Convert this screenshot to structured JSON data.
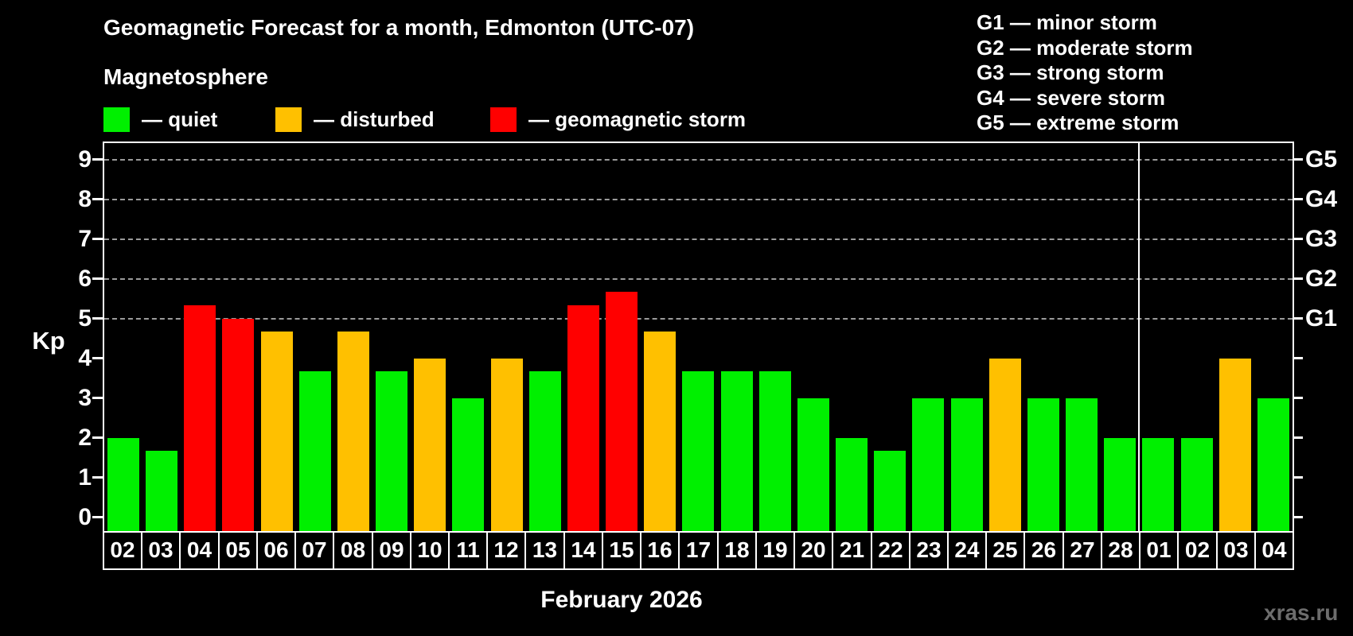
{
  "title": "Geomagnetic Forecast for a month, Edmonton (UTC-07)",
  "subtitle": "Magnetosphere",
  "legend": {
    "items": [
      {
        "key": "quiet",
        "label": "— quiet",
        "color": "#00f000"
      },
      {
        "key": "disturbed",
        "label": "— disturbed",
        "color": "#ffc000"
      },
      {
        "key": "storm",
        "label": "— geomagnetic storm",
        "color": "#ff0000"
      }
    ]
  },
  "storm_scale": [
    "G1 — minor storm",
    "G2 — moderate storm",
    "G3 — strong storm",
    "G4 — severe storm",
    "G5 — extreme storm"
  ],
  "month_label": "February 2026",
  "watermark": "xras.ru",
  "chart_data": {
    "type": "bar",
    "title": "Geomagnetic Forecast for a month, Edmonton (UTC-07)",
    "subtitle": "Magnetosphere",
    "xlabel": "February 2026",
    "ylabel": "Kp",
    "ylim": [
      0,
      9
    ],
    "yticks": [
      0,
      1,
      2,
      3,
      4,
      5,
      6,
      7,
      8,
      9
    ],
    "grid": "dashed horizontal lines at Kp 5-9 only",
    "gridlines": [
      5,
      6,
      7,
      8,
      9
    ],
    "right_axis_labels": [
      {
        "label": "G1",
        "kp": 5
      },
      {
        "label": "G2",
        "kp": 6
      },
      {
        "label": "G3",
        "kp": 7
      },
      {
        "label": "G4",
        "kp": 8
      },
      {
        "label": "G5",
        "kp": 9
      }
    ],
    "categories": [
      "02",
      "03",
      "04",
      "05",
      "06",
      "07",
      "08",
      "09",
      "10",
      "11",
      "12",
      "13",
      "14",
      "15",
      "16",
      "17",
      "18",
      "19",
      "20",
      "21",
      "22",
      "23",
      "24",
      "25",
      "26",
      "27",
      "28",
      "01",
      "02",
      "03",
      "04"
    ],
    "values": [
      2.0,
      1.67,
      5.33,
      5.0,
      4.67,
      3.67,
      4.67,
      3.67,
      4.0,
      3.0,
      4.0,
      3.67,
      5.33,
      5.67,
      4.67,
      3.67,
      3.67,
      3.67,
      3.0,
      2.0,
      1.67,
      3.0,
      3.0,
      4.0,
      3.0,
      3.0,
      2.0,
      2.0,
      2.0,
      4.0,
      3.0
    ],
    "statuses": [
      "quiet",
      "quiet",
      "storm",
      "storm",
      "disturbed",
      "quiet",
      "disturbed",
      "quiet",
      "disturbed",
      "quiet",
      "disturbed",
      "quiet",
      "storm",
      "storm",
      "disturbed",
      "quiet",
      "quiet",
      "quiet",
      "quiet",
      "quiet",
      "quiet",
      "quiet",
      "quiet",
      "disturbed",
      "quiet",
      "quiet",
      "quiet",
      "quiet",
      "quiet",
      "disturbed",
      "quiet"
    ],
    "colors": {
      "quiet": "#00f000",
      "disturbed": "#ffc000",
      "storm": "#ff0000"
    },
    "month_boundary_after_index": 26,
    "legend_position": "top-left",
    "axis_color": "#ffffff",
    "gridline_color": "#9b9b9b",
    "background_color": "#000000"
  }
}
